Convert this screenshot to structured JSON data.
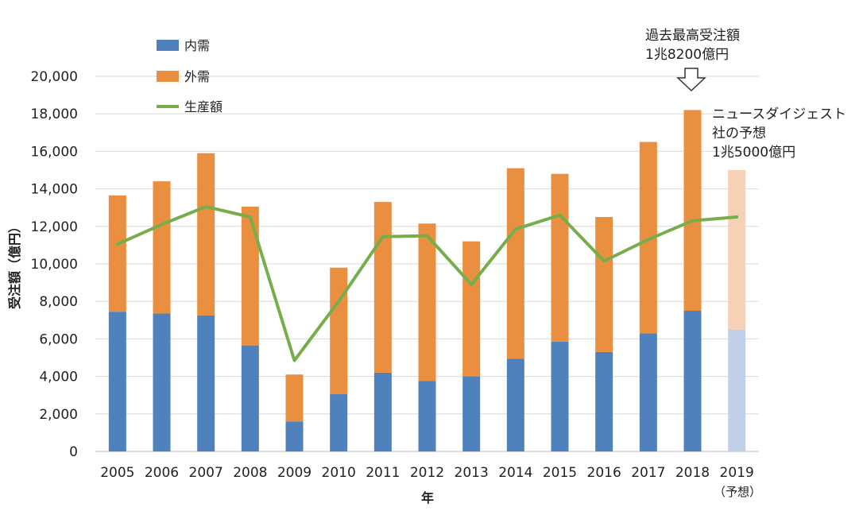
{
  "chart_data": {
    "type": "bar",
    "categories": [
      "2005",
      "2006",
      "2007",
      "2008",
      "2009",
      "2010",
      "2011",
      "2012",
      "2013",
      "2014",
      "2015",
      "2016",
      "2017",
      "2018",
      "2019"
    ],
    "forecast_category_note": "（予想）",
    "series": [
      {
        "name": "内需",
        "type": "bar",
        "stack": "orders",
        "color": "#4f81bd",
        "values": [
          7450,
          7350,
          7250,
          5650,
          1600,
          3050,
          4200,
          3750,
          4000,
          4950,
          5850,
          5300,
          6300,
          7500,
          6500
        ]
      },
      {
        "name": "外需",
        "type": "bar",
        "stack": "orders",
        "color": "#ea8f3f",
        "values": [
          6200,
          7050,
          8650,
          7400,
          2500,
          6750,
          9100,
          8400,
          7200,
          10150,
          8950,
          7200,
          10200,
          10700,
          8500
        ]
      },
      {
        "name": "生産額",
        "type": "line",
        "color": "#78ad4c",
        "values": [
          11050,
          12100,
          13050,
          12500,
          4850,
          8000,
          11450,
          11500,
          8900,
          11850,
          12600,
          10150,
          11300,
          12300,
          12500
        ]
      }
    ],
    "forecast_colors": {
      "内需": "#bfd0e8",
      "外需": "#f7d1b6"
    },
    "ylabel": "受注額（億円）",
    "xlabel": "年",
    "ylim": [
      0,
      20000
    ],
    "yticks": [
      "0",
      "2,000",
      "4,000",
      "6,000",
      "8,000",
      "10,000",
      "12,000",
      "14,000",
      "16,000",
      "18,000",
      "20,000"
    ],
    "grid": true,
    "legend_position": "top-left",
    "annotations": {
      "record": {
        "lines": [
          "過去最高受注額",
          "1兆8200億円"
        ],
        "category": "2018"
      },
      "forecast": {
        "lines": [
          "ニュースダイジェスト",
          "社の予想",
          "1兆5000億円"
        ],
        "category": "2019"
      }
    }
  }
}
